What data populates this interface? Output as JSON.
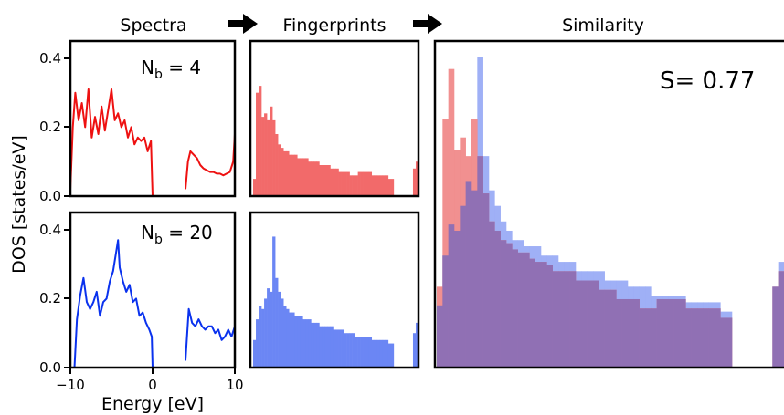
{
  "headers": {
    "spectra": "Spectra",
    "fingerprints": "Fingerprints",
    "similarity": "Similarity"
  },
  "axes": {
    "ylabel": "DOS [states/eV]",
    "xlabel": "Energy [eV]",
    "xticks": [
      "−10",
      "0",
      "10"
    ],
    "yticks_top": [
      "0.0",
      "0.2",
      "0.4"
    ],
    "yticks_bottom": [
      "0.0",
      "0.2",
      "0.4"
    ]
  },
  "annotations": {
    "nb_top_prefix": "N",
    "nb_top_sub": "b",
    "nb_top_value": " = 4",
    "nb_bottom_prefix": "N",
    "nb_bottom_sub": "b",
    "nb_bottom_value": " = 20",
    "similarity_score": "S= 0.77"
  },
  "colors": {
    "red_line": "#ee1111",
    "blue_line": "#0a32ee",
    "red_hist": "#f26a6a",
    "blue_hist": "#6b86f4",
    "sim_red": "#f08a8a",
    "sim_blue": "#9aacf6",
    "overlap": "#9070b4"
  },
  "chart_data": [
    {
      "type": "line",
      "panel": "spectra-top",
      "x_range": [
        -10,
        10
      ],
      "ylim": [
        0,
        0.45
      ],
      "series": [
        {
          "x": [
            -10,
            -9.7,
            -9.4,
            -9.0,
            -8.6,
            -8.2,
            -7.8,
            -7.4,
            -7.0,
            -6.6,
            -6.2,
            -5.8,
            -5.4,
            -5.0,
            -4.6,
            -4.2,
            -3.8,
            -3.4,
            -3.0,
            -2.6,
            -2.2,
            -1.8,
            -1.4,
            -1.0,
            -0.6,
            -0.2,
            0.0
          ],
          "y": [
            0.02,
            0.2,
            0.3,
            0.22,
            0.27,
            0.2,
            0.31,
            0.17,
            0.23,
            0.18,
            0.26,
            0.19,
            0.25,
            0.31,
            0.22,
            0.24,
            0.2,
            0.22,
            0.17,
            0.2,
            0.15,
            0.17,
            0.16,
            0.17,
            0.13,
            0.16,
            0.0
          ]
        },
        {
          "x": [
            4.0,
            4.3,
            4.6,
            5.0,
            5.4,
            5.8,
            6.2,
            6.6,
            7.0,
            7.4,
            7.8,
            8.2,
            8.6,
            9.0,
            9.4,
            9.8,
            10.0
          ],
          "y": [
            0.02,
            0.1,
            0.13,
            0.12,
            0.11,
            0.09,
            0.08,
            0.075,
            0.07,
            0.07,
            0.065,
            0.065,
            0.06,
            0.065,
            0.07,
            0.1,
            0.18
          ]
        }
      ]
    },
    {
      "type": "line",
      "panel": "spectra-bottom",
      "x_range": [
        -10,
        10
      ],
      "ylim": [
        0,
        0.45
      ],
      "series": [
        {
          "x": [
            -9.5,
            -9.2,
            -8.8,
            -8.4,
            -8.0,
            -7.6,
            -7.2,
            -6.8,
            -6.4,
            -6.0,
            -5.6,
            -5.2,
            -4.8,
            -4.4,
            -4.2,
            -4.0,
            -3.6,
            -3.2,
            -2.8,
            -2.4,
            -2.0,
            -1.6,
            -1.2,
            -0.8,
            -0.4,
            -0.1,
            0.0
          ],
          "y": [
            0.0,
            0.14,
            0.21,
            0.26,
            0.19,
            0.17,
            0.19,
            0.22,
            0.15,
            0.19,
            0.2,
            0.25,
            0.28,
            0.34,
            0.37,
            0.29,
            0.25,
            0.22,
            0.24,
            0.19,
            0.2,
            0.15,
            0.16,
            0.13,
            0.11,
            0.09,
            0.0
          ]
        },
        {
          "x": [
            4.0,
            4.4,
            4.8,
            5.2,
            5.6,
            6.0,
            6.4,
            6.8,
            7.2,
            7.6,
            8.0,
            8.4,
            8.8,
            9.2,
            9.6,
            10.0
          ],
          "y": [
            0.02,
            0.17,
            0.13,
            0.12,
            0.14,
            0.12,
            0.11,
            0.12,
            0.12,
            0.1,
            0.11,
            0.08,
            0.09,
            0.11,
            0.09,
            0.12
          ]
        }
      ]
    },
    {
      "type": "bar",
      "panel": "fingerprint-top",
      "values": [
        0.05,
        0.3,
        0.32,
        0.23,
        0.24,
        0.22,
        0.26,
        0.22,
        0.18,
        0.15,
        0.14,
        0.13,
        0.13,
        0.12,
        0.12,
        0.12,
        0.11,
        0.11,
        0.11,
        0.11,
        0.1,
        0.1,
        0.1,
        0.1,
        0.09,
        0.09,
        0.09,
        0.09,
        0.08,
        0.08,
        0.08,
        0.07,
        0.07,
        0.07,
        0.07,
        0.06,
        0.06,
        0.06,
        0.07,
        0.07,
        0.07,
        0.07,
        0.07,
        0.06,
        0.06,
        0.06,
        0.06,
        0.06,
        0.06,
        0.05,
        0.05,
        0.0,
        0.0,
        0.0,
        0.0,
        0.0,
        0.0,
        0.0,
        0.08,
        0.1
      ]
    },
    {
      "type": "bar",
      "panel": "fingerprint-bottom",
      "values": [
        0.08,
        0.14,
        0.18,
        0.17,
        0.2,
        0.23,
        0.22,
        0.38,
        0.26,
        0.22,
        0.2,
        0.18,
        0.17,
        0.16,
        0.16,
        0.15,
        0.15,
        0.15,
        0.14,
        0.14,
        0.14,
        0.13,
        0.13,
        0.13,
        0.12,
        0.12,
        0.12,
        0.12,
        0.12,
        0.11,
        0.11,
        0.11,
        0.11,
        0.1,
        0.1,
        0.1,
        0.1,
        0.09,
        0.09,
        0.09,
        0.09,
        0.09,
        0.09,
        0.08,
        0.08,
        0.08,
        0.08,
        0.08,
        0.08,
        0.07,
        0.07,
        0.0,
        0.0,
        0.0,
        0.0,
        0.0,
        0.0,
        0.0,
        0.1,
        0.13
      ]
    },
    {
      "type": "bar",
      "panel": "similarity",
      "series": [
        {
          "values": [
            0.26,
            0.8,
            0.96,
            0.7,
            0.74,
            0.68,
            0.8,
            0.68,
            0.56,
            0.47,
            0.44,
            0.41,
            0.4,
            0.38,
            0.37,
            0.37,
            0.35,
            0.34,
            0.34,
            0.33,
            0.31,
            0.31,
            0.31,
            0.31,
            0.28,
            0.28,
            0.28,
            0.28,
            0.25,
            0.25,
            0.25,
            0.22,
            0.22,
            0.22,
            0.22,
            0.19,
            0.19,
            0.19,
            0.22,
            0.22,
            0.22,
            0.22,
            0.22,
            0.19,
            0.19,
            0.19,
            0.19,
            0.19,
            0.19,
            0.16,
            0.16,
            0.0,
            0.0,
            0.0,
            0.0,
            0.0,
            0.0,
            0.0,
            0.26,
            0.31
          ]
        },
        {
          "values": [
            0.2,
            0.36,
            0.46,
            0.44,
            0.52,
            0.6,
            0.57,
            1.0,
            0.68,
            0.57,
            0.52,
            0.47,
            0.44,
            0.41,
            0.41,
            0.39,
            0.39,
            0.39,
            0.36,
            0.36,
            0.36,
            0.34,
            0.34,
            0.34,
            0.31,
            0.31,
            0.31,
            0.31,
            0.31,
            0.28,
            0.28,
            0.28,
            0.28,
            0.26,
            0.26,
            0.26,
            0.26,
            0.23,
            0.23,
            0.23,
            0.23,
            0.23,
            0.23,
            0.21,
            0.21,
            0.21,
            0.21,
            0.21,
            0.21,
            0.18,
            0.18,
            0.0,
            0.0,
            0.0,
            0.0,
            0.0,
            0.0,
            0.0,
            0.26,
            0.34
          ]
        }
      ]
    }
  ]
}
